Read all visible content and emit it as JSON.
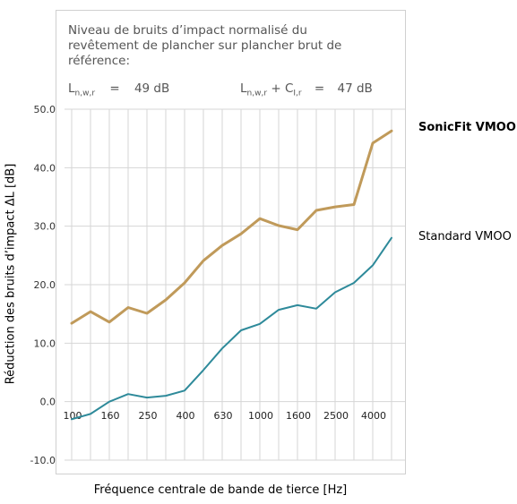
{
  "chart_data": {
    "type": "line",
    "title_lines": [
      "Niveau de bruits d’impact normalisé du",
      "revêtement de plancher sur plancher brut de",
      "référence:"
    ],
    "ylabel": "Réduction des bruits d’impact ΔL [dB]",
    "xlabel": "Fréquence centrale de bande de tierce [Hz]",
    "ylim": [
      -10,
      50
    ],
    "yticks": [
      "50.0",
      "40.0",
      "30.0",
      "20.0",
      "10.0",
      "0.0",
      "-10.0"
    ],
    "ytick_values": [
      50,
      40,
      30,
      20,
      10,
      0,
      -10
    ],
    "grid": true,
    "x": [
      100,
      125,
      160,
      200,
      250,
      315,
      400,
      500,
      630,
      800,
      1000,
      1250,
      1600,
      2000,
      2500,
      3150,
      4000,
      5000
    ],
    "xtick_labels": [
      "100",
      "160",
      "250",
      "400",
      "630",
      "1000",
      "1600",
      "2500",
      "4000"
    ],
    "xtick_label_indices": [
      0,
      2,
      4,
      6,
      8,
      10,
      12,
      14,
      16
    ],
    "series": [
      {
        "name": "SonicFit VMOO",
        "color": "#c09a5a",
        "values": [
          13.4,
          15.4,
          13.6,
          16.1,
          15.1,
          17.4,
          20.3,
          24.1,
          26.7,
          28.7,
          31.3,
          30.1,
          29.4,
          32.7,
          33.3,
          33.7,
          44.2,
          46.3
        ]
      },
      {
        "name": "Standard VMOO",
        "color": "#2e8a9a",
        "values": [
          -3.0,
          -2.1,
          0.0,
          1.3,
          0.7,
          1.0,
          1.9,
          5.4,
          9.1,
          12.2,
          13.3,
          15.7,
          16.5,
          15.9,
          18.7,
          20.3,
          23.3,
          28.0
        ]
      }
    ],
    "formulas": {
      "left": {
        "symbol": "L",
        "sub": "n,w,r",
        "equals": "=",
        "value": "49 dB"
      },
      "right": {
        "symbol": "L",
        "sub": "n,w,r",
        "plus": "+",
        "c_symbol": "C",
        "c_sub": "I,r",
        "equals": "=",
        "value": "47 dB"
      }
    }
  }
}
